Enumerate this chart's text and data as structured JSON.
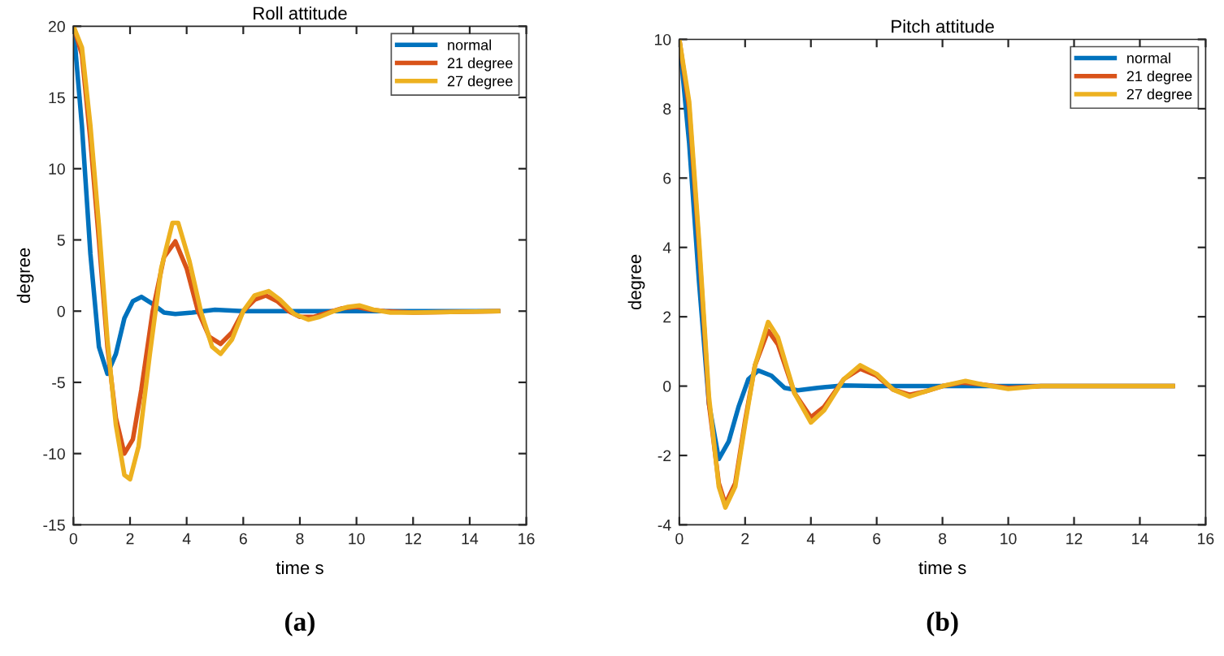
{
  "chart_data": [
    {
      "type": "line",
      "title": "Roll attitude",
      "xlabel": "time s",
      "ylabel": "degree",
      "xlim": [
        0,
        16
      ],
      "xticks": [
        0,
        2,
        4,
        6,
        8,
        10,
        12,
        14,
        16
      ],
      "ylim": [
        -15,
        20
      ],
      "yticks": [
        -15,
        -10,
        -5,
        0,
        5,
        10,
        15,
        20
      ],
      "grid": false,
      "legend": "top right",
      "annotations": [
        "(a)"
      ],
      "series": [
        {
          "name": "normal",
          "color": "#0072bd",
          "x": [
            0,
            0.3,
            0.6,
            0.9,
            1.2,
            1.5,
            1.8,
            2.1,
            2.4,
            2.8,
            3.2,
            3.6,
            4.2,
            5,
            6,
            15
          ],
          "values": [
            20,
            13,
            4,
            -2.5,
            -4.4,
            -3,
            -0.5,
            0.7,
            1.0,
            0.5,
            -0.1,
            -0.2,
            -0.1,
            0.1,
            0,
            0
          ]
        },
        {
          "name": "21 degree",
          "color": "#d95319",
          "x": [
            0,
            0.3,
            0.6,
            0.9,
            1.2,
            1.5,
            1.8,
            2.1,
            2.4,
            2.8,
            3.2,
            3.6,
            4.0,
            4.4,
            4.8,
            5.2,
            5.6,
            6.0,
            6.4,
            6.8,
            7.2,
            7.6,
            8.0,
            8.5,
            9,
            9.5,
            10,
            10.5,
            11,
            12,
            15
          ],
          "values": [
            20,
            18,
            12,
            5,
            -2.5,
            -7.5,
            -10,
            -9,
            -5.5,
            0,
            3.8,
            4.9,
            3,
            0,
            -1.8,
            -2.3,
            -1.5,
            0,
            0.8,
            1.1,
            0.7,
            0,
            -0.4,
            -0.4,
            -0.1,
            0.2,
            0.3,
            0.1,
            0,
            -0.1,
            0
          ]
        },
        {
          "name": "27 degree",
          "color": "#edb120",
          "x": [
            0,
            0.3,
            0.6,
            0.9,
            1.2,
            1.5,
            1.8,
            2.0,
            2.3,
            2.7,
            3.1,
            3.5,
            3.7,
            4.1,
            4.5,
            4.9,
            5.2,
            5.6,
            6.0,
            6.4,
            6.9,
            7.3,
            7.8,
            8.3,
            8.7,
            9.2,
            9.7,
            10.1,
            10.6,
            11.2,
            12,
            15
          ],
          "values": [
            20,
            18.5,
            13,
            6,
            -2,
            -8,
            -11.5,
            -11.8,
            -9.5,
            -3,
            3,
            6.2,
            6.2,
            3.5,
            0,
            -2.5,
            -3,
            -2,
            0,
            1.1,
            1.4,
            0.8,
            -0.2,
            -0.6,
            -0.4,
            0,
            0.3,
            0.4,
            0.1,
            -0.1,
            -0.1,
            0
          ]
        }
      ]
    },
    {
      "type": "line",
      "title": "Pitch attitude",
      "xlabel": "time s",
      "ylabel": "degree",
      "xlim": [
        0,
        16
      ],
      "xticks": [
        0,
        2,
        4,
        6,
        8,
        10,
        12,
        14,
        16
      ],
      "ylim": [
        -4,
        10
      ],
      "yticks": [
        -4,
        -2,
        0,
        2,
        4,
        6,
        8,
        10
      ],
      "grid": false,
      "legend": "top right",
      "annotations": [
        "(b)"
      ],
      "series": [
        {
          "name": "normal",
          "color": "#0072bd",
          "x": [
            0,
            0.3,
            0.6,
            0.9,
            1.2,
            1.5,
            1.8,
            2.1,
            2.4,
            2.8,
            3.2,
            3.6,
            4.2,
            5,
            6,
            15
          ],
          "values": [
            10,
            7,
            3,
            -0.5,
            -2.1,
            -1.6,
            -0.6,
            0.2,
            0.45,
            0.3,
            -0.05,
            -0.12,
            -0.05,
            0.02,
            0,
            0
          ]
        },
        {
          "name": "21 degree",
          "color": "#d95319",
          "x": [
            0,
            0.3,
            0.6,
            0.9,
            1.2,
            1.4,
            1.7,
            2.0,
            2.3,
            2.7,
            3.0,
            3.5,
            4.0,
            4.4,
            5.0,
            5.5,
            6.0,
            6.5,
            7.0,
            7.5,
            8.0,
            8.6,
            9.2,
            10,
            11,
            15
          ],
          "values": [
            10,
            8,
            4,
            -0.5,
            -2.8,
            -3.4,
            -2.8,
            -1,
            0.6,
            1.6,
            1.2,
            -0.2,
            -0.9,
            -0.6,
            0.2,
            0.5,
            0.3,
            -0.1,
            -0.25,
            -0.15,
            0,
            0.1,
            0.05,
            -0.05,
            0,
            0
          ]
        },
        {
          "name": "27 degree",
          "color": "#edb120",
          "x": [
            0,
            0.3,
            0.6,
            0.9,
            1.2,
            1.4,
            1.7,
            2.0,
            2.3,
            2.7,
            3.0,
            3.5,
            4.0,
            4.4,
            5.0,
            5.5,
            6.0,
            6.5,
            7.0,
            7.5,
            8.0,
            8.7,
            9.2,
            10,
            11,
            15
          ],
          "values": [
            10,
            8.2,
            4.2,
            -0.3,
            -2.9,
            -3.5,
            -2.9,
            -1.1,
            0.6,
            1.85,
            1.4,
            -0.2,
            -1.05,
            -0.7,
            0.2,
            0.6,
            0.35,
            -0.1,
            -0.3,
            -0.15,
            0,
            0.15,
            0.05,
            -0.08,
            0,
            0
          ]
        }
      ]
    }
  ]
}
